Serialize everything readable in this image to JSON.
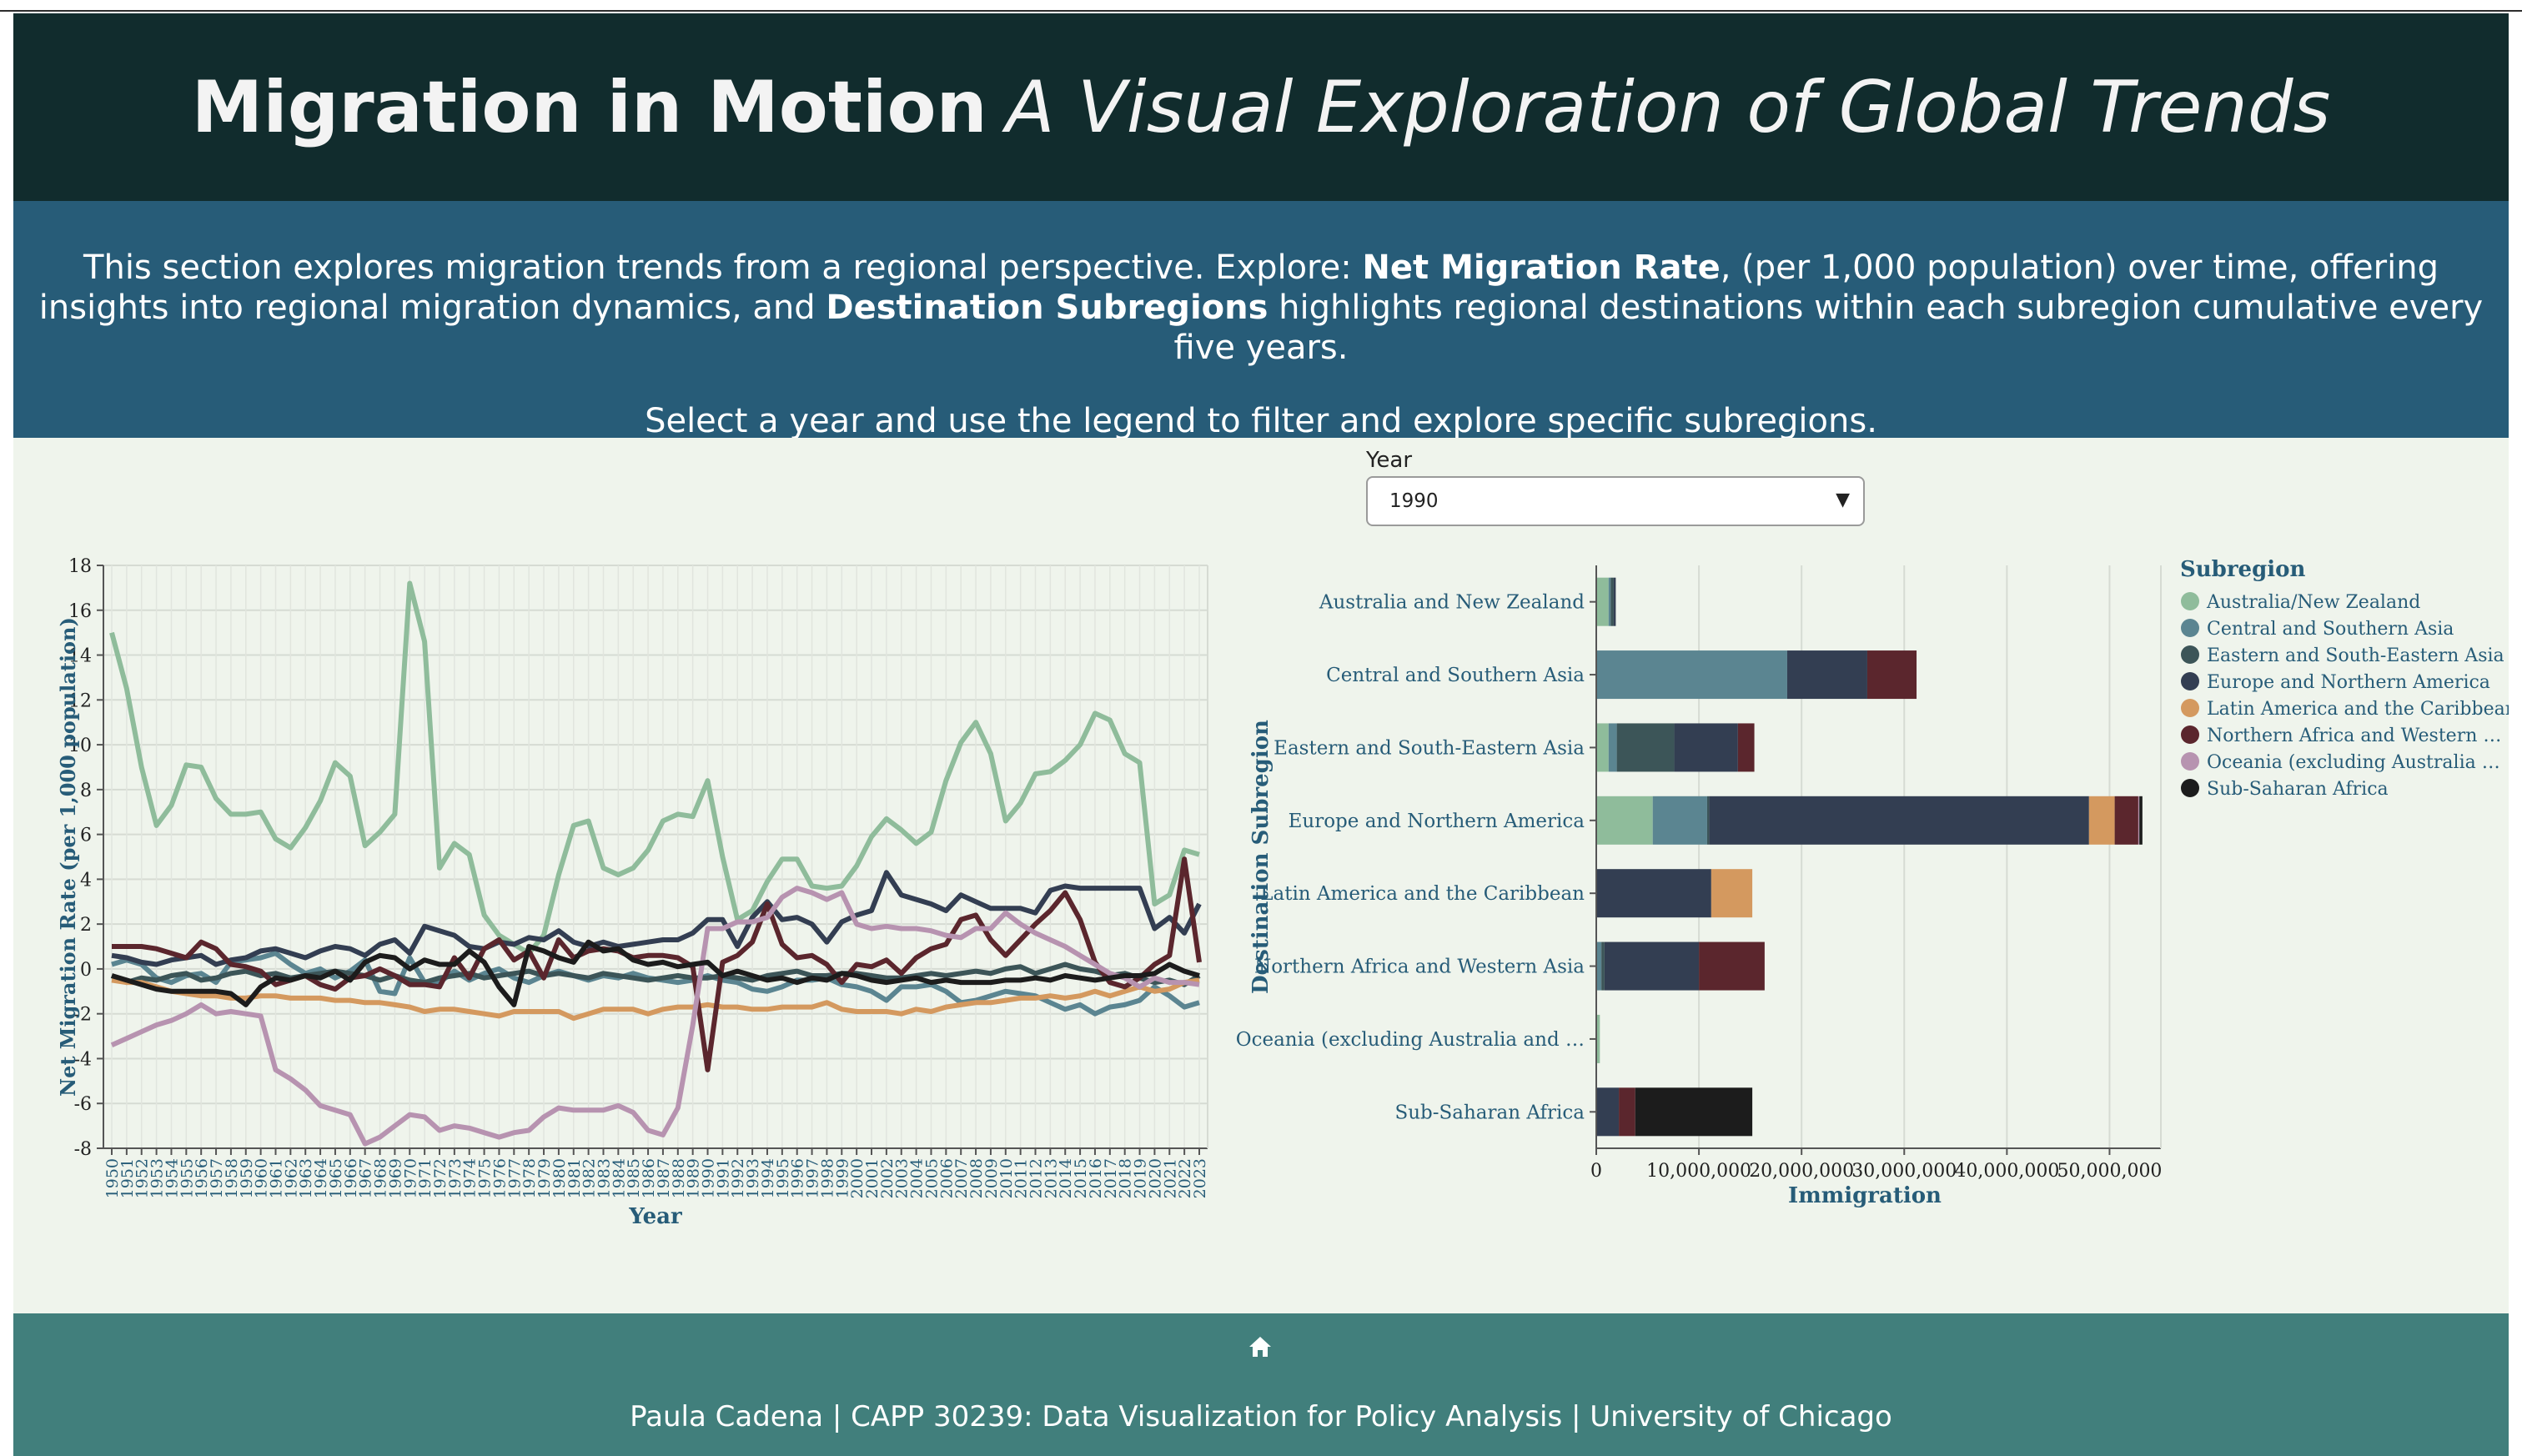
{
  "header": {
    "title_bold": "Migration in Motion",
    "title_italic": "A Visual Exploration of Global Trends"
  },
  "intro": {
    "p1_a": "This section explores migration trends from a regional perspective. Explore: ",
    "p1_b": "Net Migration Rate",
    "p1_c": ", (per 1,000 population) over time, offering insights into regional migration dynamics, and ",
    "p1_d": "Destination Subregions",
    "p1_e": " highlights regional destinations within each subregion cumulative every five years.",
    "p2": "Select a year and use the legend to filter and explore specific subregions."
  },
  "controls": {
    "year_label": "Year",
    "year_value": "1990"
  },
  "colors": {
    "Australia/New Zealand": "#8fbc9b",
    "Central and Southern Asia": "#5b8591",
    "Eastern and South-Eastern Asia": "#3c5558",
    "Europe and Northern America": "#333e52",
    "Latin America and the Caribbean": "#d4995f",
    "Northern Africa and Western Asia": "#5b262d",
    "Oceania (excluding Australia and New Zealand)": "#b793b0",
    "Sub-Saharan Africa": "#1c1c1c"
  },
  "chart_data": [
    {
      "type": "line",
      "xlabel": "Year",
      "ylabel": "Net Migration Rate (per 1,000 population)",
      "x_start": 1950,
      "x_end": 2023,
      "ylim": [
        -8,
        18
      ],
      "yticks": [
        -8,
        -6,
        -4,
        -2,
        0,
        2,
        4,
        6,
        8,
        10,
        12,
        14,
        16,
        18
      ],
      "grid": true,
      "series": [
        {
          "name": "Australia/New Zealand",
          "color": "#8fbc9b",
          "values": [
            15,
            12.5,
            9,
            6.4,
            7.3,
            9.1,
            9,
            7.6,
            6.9,
            6.9,
            7,
            5.8,
            5.4,
            6.3,
            7.5,
            9.2,
            8.6,
            5.5,
            6.1,
            6.9,
            17.2,
            14.6,
            4.5,
            5.6,
            5.1,
            2.4,
            1.5,
            1.1,
            0.7,
            1.5,
            4.2,
            6.4,
            6.6,
            4.5,
            4.2,
            4.5,
            5.3,
            6.6,
            6.9,
            6.8,
            8.4,
            5,
            2.2,
            2.6,
            3.9,
            4.9,
            4.9,
            3.7,
            3.6,
            3.7,
            4.6,
            5.9,
            6.7,
            6.2,
            5.6,
            6.1,
            8.4,
            10.1,
            11,
            9.6,
            6.6,
            7.4,
            8.7,
            8.8,
            9.3,
            10,
            11.4,
            11.1,
            9.6,
            9.2,
            2.9,
            3.3,
            5.3,
            5.1
          ]
        },
        {
          "name": "Central and Southern Asia",
          "color": "#5b8591",
          "values": [
            0.2,
            0.4,
            0.2,
            -0.4,
            -0.6,
            -0.3,
            -0.2,
            -0.6,
            0.3,
            0.4,
            0.5,
            0.7,
            0.2,
            -0.2,
            0,
            -0.4,
            -0.1,
            0.4,
            -1,
            -1.1,
            0.5,
            -0.6,
            -0.6,
            -0.1,
            -0.5,
            -0.2,
            0,
            -0.4,
            -0.6,
            -0.3,
            -0.1,
            -0.3,
            -0.5,
            -0.3,
            -0.4,
            -0.2,
            -0.4,
            -0.5,
            -0.6,
            -0.5,
            -0.3,
            -0.5,
            -0.6,
            -0.9,
            -1,
            -0.8,
            -0.5,
            -0.5,
            -0.4,
            -0.7,
            -0.8,
            -1,
            -1.4,
            -0.8,
            -0.8,
            -0.7,
            -1,
            -1.5,
            -1.4,
            -1.2,
            -1,
            -1.1,
            -1.2,
            -1.5,
            -1.8,
            -1.6,
            -2,
            -1.7,
            -1.6,
            -1.4,
            -0.8,
            -1.2,
            -1.7,
            -1.5
          ]
        },
        {
          "name": "Eastern and South-Eastern Asia",
          "color": "#3c5558",
          "values": [
            -0.3,
            -0.6,
            -0.4,
            -0.5,
            -0.3,
            -0.2,
            -0.5,
            -0.4,
            -0.2,
            -0.1,
            -0.3,
            -0.2,
            -0.4,
            -0.3,
            -0.2,
            -0.1,
            -0.2,
            -0.3,
            -0.5,
            -0.3,
            -0.5,
            -0.6,
            -0.4,
            -0.3,
            -0.2,
            -0.4,
            -0.3,
            -0.2,
            -0.1,
            -0.3,
            -0.2,
            -0.3,
            -0.4,
            -0.2,
            -0.3,
            -0.4,
            -0.5,
            -0.4,
            -0.3,
            -0.4,
            -0.4,
            -0.3,
            -0.4,
            -0.5,
            -0.3,
            -0.2,
            -0.1,
            -0.3,
            -0.3,
            -0.2,
            -0.2,
            -0.3,
            -0.4,
            -0.4,
            -0.3,
            -0.2,
            -0.3,
            -0.2,
            -0.1,
            -0.2,
            0,
            0.1,
            -0.2,
            0,
            0.2,
            0,
            -0.1,
            -0.3,
            -0.2,
            -0.4,
            -0.6,
            -0.5,
            -0.7,
            -0.3
          ]
        },
        {
          "name": "Europe and Northern America",
          "color": "#333e52",
          "values": [
            0.6,
            0.5,
            0.3,
            0.2,
            0.4,
            0.5,
            0.6,
            0.2,
            0.4,
            0.5,
            0.8,
            0.9,
            0.7,
            0.5,
            0.8,
            1,
            0.9,
            0.6,
            1.1,
            1.3,
            0.7,
            1.9,
            1.7,
            1.5,
            1,
            0.9,
            1.2,
            1.1,
            1.4,
            1.3,
            1.7,
            1.2,
            1,
            1.2,
            1,
            1.1,
            1.2,
            1.3,
            1.3,
            1.6,
            2.2,
            2.2,
            1,
            2.3,
            3,
            2.2,
            2.3,
            2,
            1.2,
            2.1,
            2.4,
            2.6,
            4.3,
            3.3,
            3.1,
            2.9,
            2.6,
            3.3,
            3,
            2.7,
            2.7,
            2.7,
            2.5,
            3.5,
            3.7,
            3.6,
            3.6,
            3.6,
            3.6,
            3.6,
            1.8,
            2.3,
            1.6,
            2.9
          ]
        },
        {
          "name": "Latin America and the Caribbean",
          "color": "#d4995f",
          "values": [
            -0.5,
            -0.6,
            -0.6,
            -0.8,
            -1,
            -1.1,
            -1.2,
            -1.2,
            -1.3,
            -1.3,
            -1.2,
            -1.2,
            -1.3,
            -1.3,
            -1.3,
            -1.4,
            -1.4,
            -1.5,
            -1.5,
            -1.6,
            -1.7,
            -1.9,
            -1.8,
            -1.8,
            -1.9,
            -2,
            -2.1,
            -1.9,
            -1.9,
            -1.9,
            -1.9,
            -2.2,
            -2,
            -1.8,
            -1.8,
            -1.8,
            -2,
            -1.8,
            -1.7,
            -1.7,
            -1.6,
            -1.7,
            -1.7,
            -1.8,
            -1.8,
            -1.7,
            -1.7,
            -1.7,
            -1.5,
            -1.8,
            -1.9,
            -1.9,
            -1.9,
            -2,
            -1.8,
            -1.9,
            -1.7,
            -1.6,
            -1.5,
            -1.5,
            -1.4,
            -1.3,
            -1.3,
            -1.2,
            -1.3,
            -1.2,
            -1,
            -1.2,
            -1,
            -0.8,
            -1,
            -0.9,
            -0.6,
            -0.5
          ]
        },
        {
          "name": "Northern Africa and Western Asia",
          "color": "#5b262d",
          "values": [
            1,
            1,
            1,
            0.9,
            0.7,
            0.5,
            1.2,
            0.9,
            0.2,
            0.1,
            -0.1,
            -0.7,
            -0.5,
            -0.3,
            -0.7,
            -0.9,
            -0.4,
            -0.3,
            0,
            -0.3,
            -0.7,
            -0.7,
            -0.8,
            0.5,
            -0.4,
            0.9,
            1.3,
            0.4,
            0.8,
            -0.4,
            1.3,
            0.5,
            0.8,
            0.9,
            0.8,
            0.5,
            0.6,
            0.6,
            0.5,
            0.1,
            -4.5,
            0.3,
            0.6,
            1.2,
            2.9,
            1.1,
            0.5,
            0.6,
            0.2,
            -0.6,
            0.2,
            0.1,
            0.4,
            -0.2,
            0.5,
            0.9,
            1.1,
            2.2,
            2.4,
            1.3,
            0.6,
            1.3,
            2,
            2.6,
            3.4,
            2.2,
            0.3,
            -0.6,
            -0.8,
            -0.4,
            0.2,
            0.6,
            4.9,
            0.3
          ]
        },
        {
          "name": "Oceania (excluding Australia and New Zealand)",
          "color": "#b793b0",
          "values": [
            -3.4,
            -3.1,
            -2.8,
            -2.5,
            -2.3,
            -2,
            -1.6,
            -2,
            -1.9,
            -2,
            -2.1,
            -4.5,
            -4.9,
            -5.4,
            -6.1,
            -6.3,
            -6.5,
            -7.8,
            -7.5,
            -7,
            -6.5,
            -6.6,
            -7.2,
            -7,
            -7.1,
            -7.3,
            -7.5,
            -7.3,
            -7.2,
            -6.6,
            -6.2,
            -6.3,
            -6.3,
            -6.3,
            -6.1,
            -6.4,
            -7.2,
            -7.4,
            -6.2,
            -2.5,
            1.8,
            1.8,
            2.1,
            2.1,
            2.3,
            3.2,
            3.6,
            3.4,
            3.1,
            3.4,
            2,
            1.8,
            1.9,
            1.8,
            1.8,
            1.7,
            1.5,
            1.4,
            1.8,
            1.8,
            2.5,
            2,
            1.6,
            1.3,
            1,
            0.6,
            0.2,
            -0.2,
            -0.4,
            -0.8,
            -0.4,
            -0.6,
            -0.6,
            -0.7
          ]
        },
        {
          "name": "Sub-Saharan Africa",
          "color": "#1c1c1c",
          "values": [
            -0.3,
            -0.5,
            -0.7,
            -0.9,
            -1,
            -1,
            -1,
            -1,
            -1.1,
            -1.6,
            -0.8,
            -0.4,
            -0.5,
            -0.3,
            -0.4,
            -0.1,
            -0.5,
            0.3,
            0.6,
            0.5,
            0,
            0.4,
            0.2,
            0.2,
            0.8,
            0.3,
            -0.8,
            -1.6,
            1,
            0.8,
            0.5,
            0.3,
            1.2,
            0.8,
            0.9,
            0.4,
            0.2,
            0.3,
            0.1,
            0.2,
            0.3,
            -0.3,
            -0.1,
            -0.3,
            -0.5,
            -0.4,
            -0.6,
            -0.4,
            -0.5,
            -0.2,
            -0.3,
            -0.5,
            -0.6,
            -0.5,
            -0.4,
            -0.6,
            -0.5,
            -0.6,
            -0.6,
            -0.6,
            -0.5,
            -0.5,
            -0.4,
            -0.5,
            -0.3,
            -0.4,
            -0.5,
            -0.4,
            -0.3,
            -0.3,
            -0.2,
            0.2,
            -0.1,
            -0.3
          ]
        }
      ]
    },
    {
      "type": "bar",
      "orientation": "horizontal-stacked",
      "xlabel": "Immigration",
      "ylabel": "Destination Subregion",
      "xlim": [
        0,
        55000000
      ],
      "xticks": [
        0,
        10000000,
        20000000,
        30000000,
        40000000,
        50000000
      ],
      "xtick_labels": [
        "0",
        "10,000,000",
        "20,000,000",
        "30,000,000",
        "40,000,000",
        "50,000,000"
      ],
      "legend_title": "Subregion",
      "legend_placement": "right",
      "legend_items": [
        "Australia/New Zealand",
        "Central and Southern Asia",
        "Eastern and South-Eastern Asia",
        "Europe and Northern America",
        "Latin America and the Caribbean",
        "Northern Africa and Western …",
        "Oceania (excluding Australia …",
        "Sub-Saharan Africa"
      ],
      "categories": [
        "Australia and New Zealand",
        "Central and Southern Asia",
        "Eastern and South-Eastern Asia",
        "Europe and Northern America",
        "Latin America and the Caribbean",
        "Northern Africa and Western Asia",
        "Oceania (excluding Australia and …",
        "Sub-Saharan Africa"
      ],
      "series": [
        {
          "name": "Australia/New Zealand",
          "values": [
            1200000,
            0,
            1200000,
            5500000,
            0,
            0,
            350000,
            0
          ]
        },
        {
          "name": "Central and Southern Asia",
          "values": [
            200000,
            18600000,
            800000,
            5300000,
            0,
            500000,
            0,
            0
          ]
        },
        {
          "name": "Eastern and South-Eastern Asia",
          "values": [
            300000,
            0,
            5600000,
            200000,
            0,
            300000,
            0,
            0
          ]
        },
        {
          "name": "Europe and Northern America",
          "values": [
            200000,
            7800000,
            6200000,
            37000000,
            11200000,
            9200000,
            0,
            2200000
          ]
        },
        {
          "name": "Latin America and the Caribbean",
          "values": [
            0,
            0,
            0,
            2500000,
            4000000,
            0,
            0,
            0
          ]
        },
        {
          "name": "Northern Africa and Western Asia",
          "values": [
            0,
            4800000,
            1600000,
            2300000,
            0,
            6400000,
            0,
            1600000
          ]
        },
        {
          "name": "Oceania (excluding Australia and New Zealand)",
          "values": [
            0,
            0,
            0,
            100000,
            0,
            0,
            0,
            0
          ]
        },
        {
          "name": "Sub-Saharan Africa",
          "values": [
            0,
            0,
            0,
            300000,
            0,
            0,
            0,
            11400000
          ]
        }
      ]
    }
  ],
  "footer": {
    "credit": "Paula Cadena | CAPP 30239: Data Visualization for Policy Analysis | University of Chicago"
  }
}
